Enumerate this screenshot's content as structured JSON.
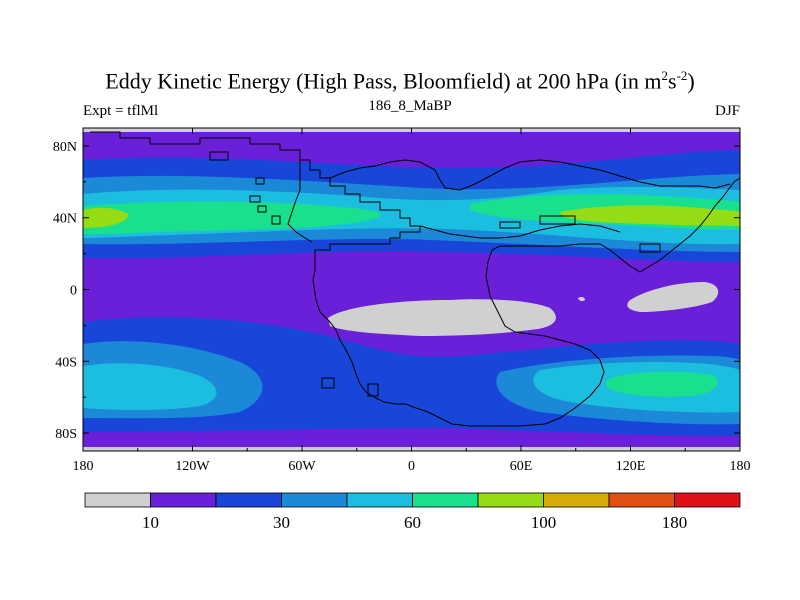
{
  "chart_data": {
    "type": "heatmap",
    "title_main": "Eddy Kinetic Energy (High Pass, Bloomfield) at 200 hPa (in m",
    "title_sup1": "2",
    "title_mid": "s",
    "title_sup2": "-2",
    "title_end": ")",
    "left_label": "Expt = tflMl",
    "center_label": "186_8_MaBP",
    "right_label": "DJF",
    "x_ticks": [
      "180",
      "120W",
      "60W",
      "0",
      "60E",
      "120E",
      "180"
    ],
    "y_ticks": [
      "80N",
      "40N",
      "0",
      "40S",
      "80S"
    ],
    "x_range": [
      -180,
      180
    ],
    "y_range": [
      -90,
      90
    ],
    "colorbar": {
      "colors": [
        "#d0d0d0",
        "#6a1fd8",
        "#1846d8",
        "#1c88d8",
        "#1cbee0",
        "#18e08c",
        "#96dc14",
        "#d8ac06",
        "#e05010",
        "#e01018"
      ],
      "labels": [
        "10",
        "30",
        "60",
        "100",
        "180"
      ]
    }
  }
}
